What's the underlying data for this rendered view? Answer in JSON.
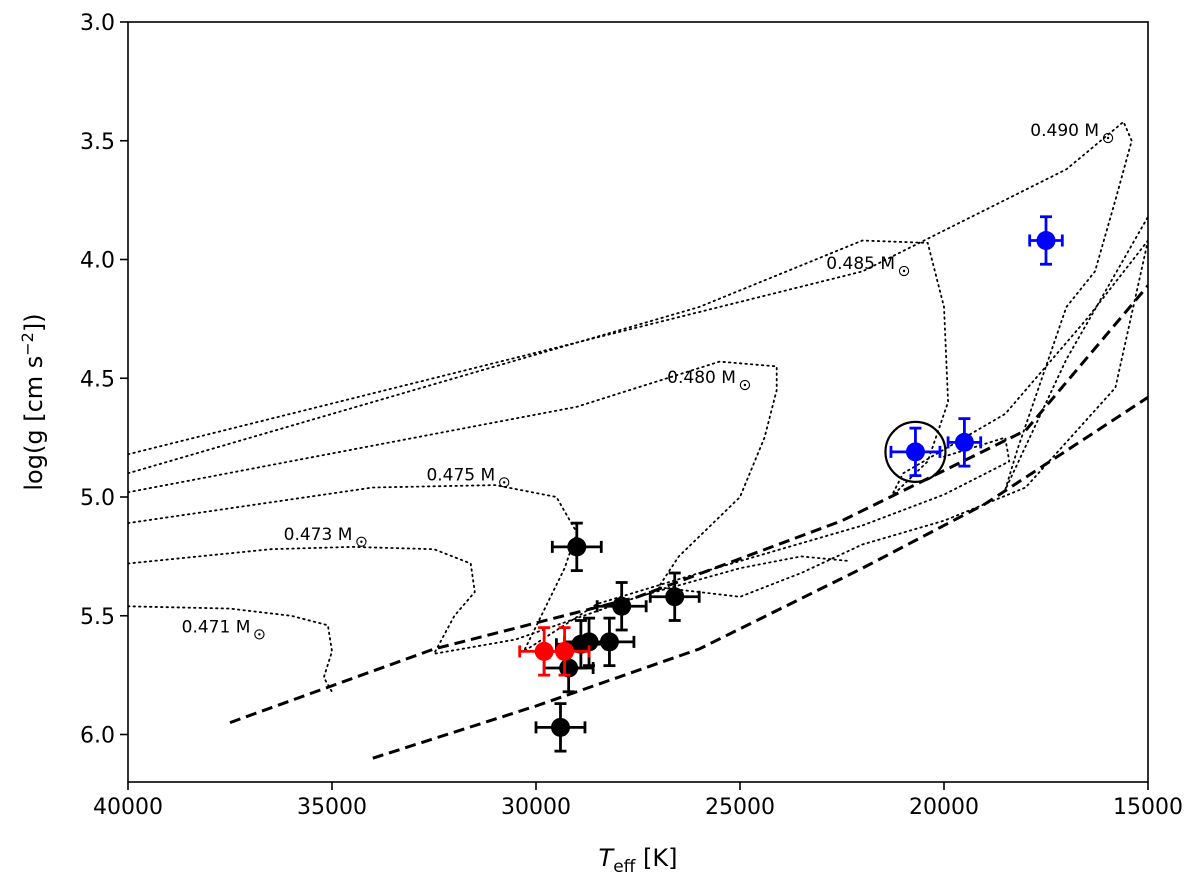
{
  "chart_data": {
    "type": "scatter",
    "xlabel": {
      "main": "T",
      "sub": "eff",
      "rest": " [K]"
    },
    "ylabel": {
      "pre": "log(g [cm s",
      "sup": "−2",
      "post": "])"
    },
    "xlim": [
      40000,
      15000
    ],
    "ylim": [
      6.2,
      3.0
    ],
    "x_ticks": [
      "40000",
      "35000",
      "30000",
      "25000",
      "20000",
      "15000"
    ],
    "x_tick_values": [
      40000,
      35000,
      30000,
      25000,
      20000,
      15000
    ],
    "y_ticks": [
      "3.0",
      "3.5",
      "4.0",
      "4.5",
      "5.0",
      "5.5",
      "6.0"
    ],
    "y_tick_values": [
      3.0,
      3.5,
      4.0,
      4.5,
      5.0,
      5.5,
      6.0
    ],
    "grid": false,
    "colors": {
      "black": "#000000",
      "red": "#ff0000",
      "blue": "#0000ff"
    },
    "points": [
      {
        "teff": 29000,
        "logg": 5.21,
        "dx": 600,
        "dy": 0.1,
        "color": "black"
      },
      {
        "teff": 27900,
        "logg": 5.46,
        "dx": 600,
        "dy": 0.1,
        "color": "black"
      },
      {
        "teff": 26600,
        "logg": 5.42,
        "dx": 600,
        "dy": 0.1,
        "color": "black"
      },
      {
        "teff": 28700,
        "logg": 5.61,
        "dx": 600,
        "dy": 0.1,
        "color": "black"
      },
      {
        "teff": 28200,
        "logg": 5.61,
        "dx": 600,
        "dy": 0.1,
        "color": "black"
      },
      {
        "teff": 28900,
        "logg": 5.62,
        "dx": 600,
        "dy": 0.1,
        "color": "black"
      },
      {
        "teff": 29200,
        "logg": 5.72,
        "dx": 600,
        "dy": 0.1,
        "color": "black"
      },
      {
        "teff": 29400,
        "logg": 5.97,
        "dx": 600,
        "dy": 0.1,
        "color": "black"
      },
      {
        "teff": 29800,
        "logg": 5.65,
        "dx": 600,
        "dy": 0.1,
        "color": "red"
      },
      {
        "teff": 29300,
        "logg": 5.65,
        "dx": 600,
        "dy": 0.1,
        "color": "red"
      },
      {
        "teff": 20700,
        "logg": 4.81,
        "dx": 600,
        "dy": 0.1,
        "color": "blue",
        "circled": true
      },
      {
        "teff": 19500,
        "logg": 4.77,
        "dx": 400,
        "dy": 0.1,
        "color": "blue"
      },
      {
        "teff": 17500,
        "logg": 3.92,
        "dx": 400,
        "dy": 0.1,
        "color": "blue"
      }
    ],
    "dashed_lines": [
      {
        "teff": [
          37500,
          32500,
          27500,
          22500,
          18000,
          15000
        ],
        "logg": [
          5.95,
          5.64,
          5.42,
          5.1,
          4.72,
          4.11
        ]
      },
      {
        "teff": [
          34000,
          30000,
          26000,
          22000,
          19000,
          15000
        ],
        "logg": [
          6.1,
          5.88,
          5.64,
          5.3,
          5.03,
          4.58
        ]
      }
    ],
    "tracks": [
      {
        "label": "0.490 M",
        "label_teff": 16200,
        "label_logg": 3.48,
        "teff": [
          40000,
          22000,
          17000,
          15600,
          15400,
          15800,
          16300,
          17000,
          17600,
          18200,
          18500,
          17000,
          15000
        ],
        "logg": [
          4.82,
          4.05,
          3.62,
          3.42,
          3.5,
          3.75,
          4.05,
          4.2,
          4.5,
          4.8,
          4.97,
          4.42,
          3.82
        ]
      },
      {
        "label": "0.485 M",
        "label_teff": 21200,
        "label_logg": 4.04,
        "teff": [
          40000,
          26000,
          22000,
          20400,
          20000,
          19900,
          20400,
          21300,
          21000,
          20000,
          18500,
          16500,
          15000
        ],
        "logg": [
          4.9,
          4.2,
          3.92,
          3.93,
          4.2,
          4.6,
          4.85,
          5.0,
          4.9,
          4.8,
          4.65,
          4.25,
          3.92
        ]
      },
      {
        "label": "0.480 M",
        "label_teff": 25100,
        "label_logg": 4.52,
        "teff": [
          40000,
          29000,
          25500,
          24100,
          24100,
          24400,
          25000,
          26500,
          27000,
          25000,
          23500,
          22000,
          20000,
          18000,
          15800,
          15000
        ],
        "logg": [
          4.98,
          4.62,
          4.43,
          4.45,
          4.55,
          4.75,
          5.0,
          5.25,
          5.38,
          5.42,
          5.32,
          5.2,
          5.1,
          4.96,
          4.54,
          3.92
        ]
      },
      {
        "label": "0.475 M",
        "label_teff": 31000,
        "label_logg": 4.93,
        "teff": [
          40000,
          34000,
          31000,
          29500,
          29000,
          29300,
          30300,
          28500,
          26000,
          24000,
          22000,
          20000,
          18400,
          18500,
          20000
        ],
        "logg": [
          5.11,
          4.96,
          4.95,
          5.0,
          5.15,
          5.3,
          5.65,
          5.45,
          5.32,
          5.22,
          5.12,
          4.99,
          4.85,
          4.75,
          4.83
        ]
      },
      {
        "label": "0.473 M",
        "label_teff": 34500,
        "label_logg": 5.18,
        "teff": [
          40000,
          36500,
          34500,
          32500,
          31600,
          31500,
          32000,
          32500,
          30500,
          27500,
          25000,
          23500,
          22300
        ],
        "logg": [
          5.28,
          5.22,
          5.21,
          5.22,
          5.28,
          5.4,
          5.5,
          5.66,
          5.6,
          5.42,
          5.3,
          5.25,
          5.27
        ]
      },
      {
        "label": "0.471 M",
        "label_teff": 37000,
        "label_logg": 5.57,
        "teff": [
          40000,
          37500,
          36000,
          35100,
          35000,
          35200,
          35000
        ],
        "logg": [
          5.46,
          5.47,
          5.5,
          5.54,
          5.65,
          5.76,
          5.82
        ]
      }
    ]
  }
}
